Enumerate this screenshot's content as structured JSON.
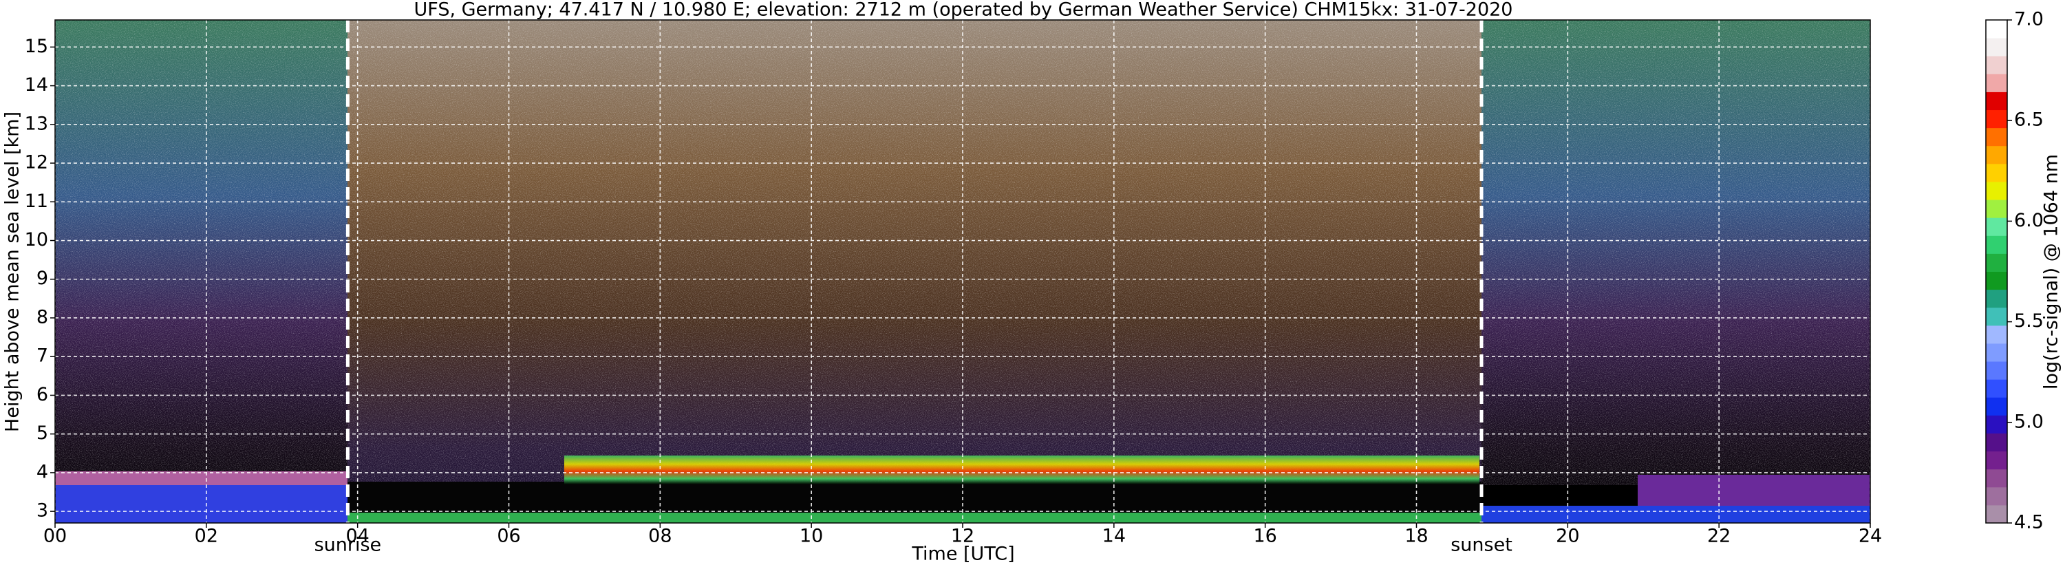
{
  "chart_data": {
    "type": "heatmap",
    "title": "UFS, Germany; 47.417 N / 10.980 E; elevation: 2712 m  (operated by German Weather Service)    CHM15kx: 31-07-2020",
    "x_label": "Time [UTC]",
    "y_label": "Height above mean sea level [km]",
    "xlim": [
      0,
      24
    ],
    "xticks": [
      {
        "value": 0,
        "label": "00"
      },
      {
        "value": 2,
        "label": "02"
      },
      {
        "value": 4,
        "label": "04"
      },
      {
        "value": 6,
        "label": "06"
      },
      {
        "value": 8,
        "label": "08"
      },
      {
        "value": 10,
        "label": "10"
      },
      {
        "value": 12,
        "label": "12"
      },
      {
        "value": 14,
        "label": "14"
      },
      {
        "value": 16,
        "label": "16"
      },
      {
        "value": 18,
        "label": "18"
      },
      {
        "value": 20,
        "label": "20"
      },
      {
        "value": 22,
        "label": "22"
      },
      {
        "value": 24,
        "label": "24"
      }
    ],
    "ylim": [
      2.7,
      15.7
    ],
    "yticks": [
      3,
      4,
      5,
      6,
      7,
      8,
      9,
      10,
      11,
      12,
      13,
      14,
      15
    ],
    "grid": true,
    "annotations": [
      {
        "text": "sunrise",
        "x": 3.87
      },
      {
        "text": "sunset",
        "x": 18.86
      }
    ],
    "colorbar": {
      "label": "log(rc-signal) @ 1064 nm",
      "lim": [
        4.5,
        7.0
      ],
      "ticks": [
        {
          "value": 4.5,
          "label": "4.5"
        },
        {
          "value": 5.0,
          "label": "5.0"
        },
        {
          "value": 5.5,
          "label": "5.5"
        },
        {
          "value": 6.0,
          "label": "6.0"
        },
        {
          "value": 6.5,
          "label": "6.5"
        },
        {
          "value": 7.0,
          "label": "7.0"
        }
      ],
      "colors": [
        "#a98fa9",
        "#9e6f9e",
        "#8f4a93",
        "#74208e",
        "#55108a",
        "#2a10c0",
        "#1030f0",
        "#3050ff",
        "#5a78ff",
        "#7f9cff",
        "#a0b8ff",
        "#40c0b8",
        "#20a080",
        "#109a20",
        "#20b040",
        "#30d070",
        "#60e8a0",
        "#a0f040",
        "#e8f000",
        "#ffd000",
        "#ffa800",
        "#ff7000",
        "#ff2000",
        "#e00000",
        "#f0a8a8",
        "#f0d0d0",
        "#f4f0f0",
        "#ffffff"
      ]
    }
  }
}
